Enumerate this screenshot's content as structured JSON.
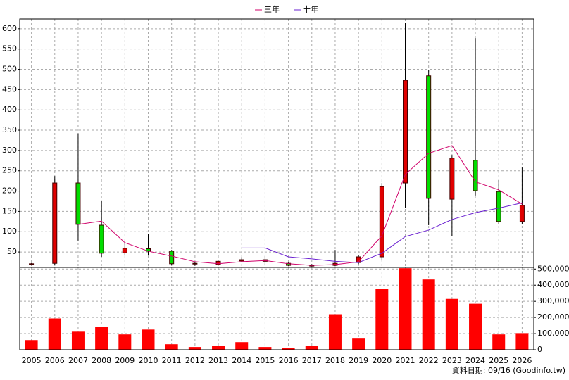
{
  "chart_data": [
    {
      "type": "candlestick",
      "categories": [
        "2005",
        "2006",
        "2007",
        "2008",
        "2009",
        "2010",
        "2011",
        "2012",
        "2013",
        "2014",
        "2015",
        "2016",
        "2017",
        "2018",
        "2019",
        "2020",
        "2021",
        "2022",
        "2023",
        "2024",
        "2025",
        "2026"
      ],
      "open": [
        20,
        22,
        220,
        116,
        48,
        58,
        52,
        22,
        19,
        28,
        27,
        22,
        16,
        17,
        24,
        38,
        220,
        484,
        180,
        276,
        199,
        125
      ],
      "high": [
        23,
        237,
        342,
        177,
        73,
        95,
        55,
        26,
        28,
        37,
        40,
        24,
        20,
        55,
        42,
        220,
        614,
        498,
        289,
        577,
        227,
        258
      ],
      "low": [
        17,
        18,
        78,
        38,
        43,
        43,
        17,
        16,
        18,
        26,
        19,
        15,
        14,
        15,
        20,
        29,
        159,
        116,
        90,
        189,
        118,
        119
      ],
      "close": [
        21,
        220,
        118,
        47,
        59,
        52,
        21,
        21,
        27,
        31,
        31,
        17,
        17,
        22,
        38,
        211,
        473,
        182,
        281,
        201,
        125,
        165
      ],
      "up_color": "#e00000",
      "down_color": "#00dd00",
      "series": [
        {
          "name": "三年",
          "color": "#d0006a",
          "values": [
            null,
            null,
            118,
            126,
            73,
            52,
            40,
            26,
            21,
            26,
            29,
            21,
            17,
            19,
            26,
            90,
            241,
            293,
            312,
            223,
            203,
            168
          ]
        },
        {
          "name": "十年",
          "color": "#6a20d0",
          "values": [
            null,
            null,
            null,
            null,
            null,
            null,
            null,
            null,
            null,
            60,
            60,
            38,
            33,
            27,
            24,
            47,
            88,
            104,
            130,
            147,
            158,
            171
          ]
        }
      ],
      "ylim": [
        12,
        624
      ],
      "yticks": [
        50,
        100,
        150,
        200,
        250,
        300,
        350,
        400,
        450,
        500,
        550,
        600
      ],
      "grid": true,
      "legend": "top",
      "note": "資料日期: 09/16  (Goodinfo.tw)"
    },
    {
      "type": "bar",
      "values": [
        60000,
        194000,
        112000,
        142000,
        95000,
        125000,
        34000,
        17000,
        22000,
        47000,
        17000,
        13000,
        26000,
        220000,
        69000,
        375000,
        505000,
        435000,
        315000,
        285000,
        95000,
        103000
      ],
      "color": "#ff0000",
      "ylim": [
        0,
        510000
      ],
      "yticks": [
        0,
        {
          "value": 100000,
          "label": "100,000"
        },
        {
          "value": 200000,
          "label": "200,000"
        },
        {
          "value": 300000,
          "label": "300,000"
        },
        {
          "value": 400000,
          "label": "400,000"
        },
        {
          "value": 500000,
          "label": "500,000"
        }
      ],
      "grid": true
    }
  ]
}
